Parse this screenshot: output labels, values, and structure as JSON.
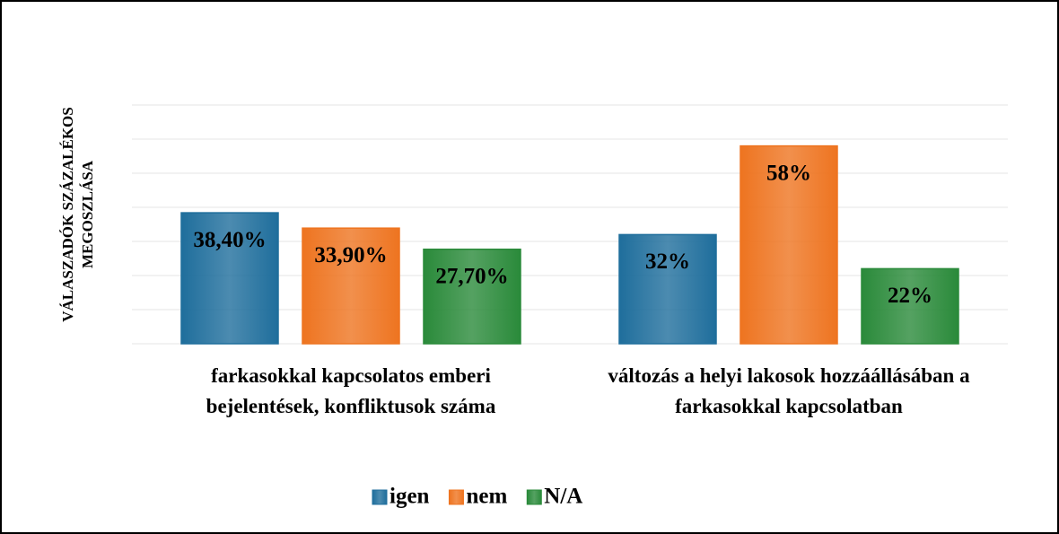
{
  "chart_data": {
    "type": "bar",
    "y_label": "VÁLASZADÓK  SZÁZALÉKOS MEGOSZLÁSA",
    "categories": [
      "farkasokkal kapcsolatos emberi bejelentések, konfliktusok száma",
      "változás a helyi lakosok hozzáállásában a farkasokkal kapcsolatban"
    ],
    "series": [
      {
        "name": "igen",
        "color": "#1f6e9c",
        "values": [
          38.4,
          32
        ],
        "value_labels": [
          "38,40%",
          "32%"
        ]
      },
      {
        "name": "nem",
        "color": "#ee7420",
        "values": [
          33.9,
          58
        ],
        "value_labels": [
          "33,90%",
          "58%"
        ]
      },
      {
        "name": "N/A",
        "color": "#2a8a3a",
        "values": [
          27.7,
          22
        ],
        "value_labels": [
          "27,70%",
          "22%"
        ]
      }
    ],
    "ylim": [
      0,
      70
    ],
    "yticks": [
      0,
      10,
      20,
      30,
      40,
      50,
      60,
      70
    ],
    "grid": true,
    "legend": "bottom"
  }
}
